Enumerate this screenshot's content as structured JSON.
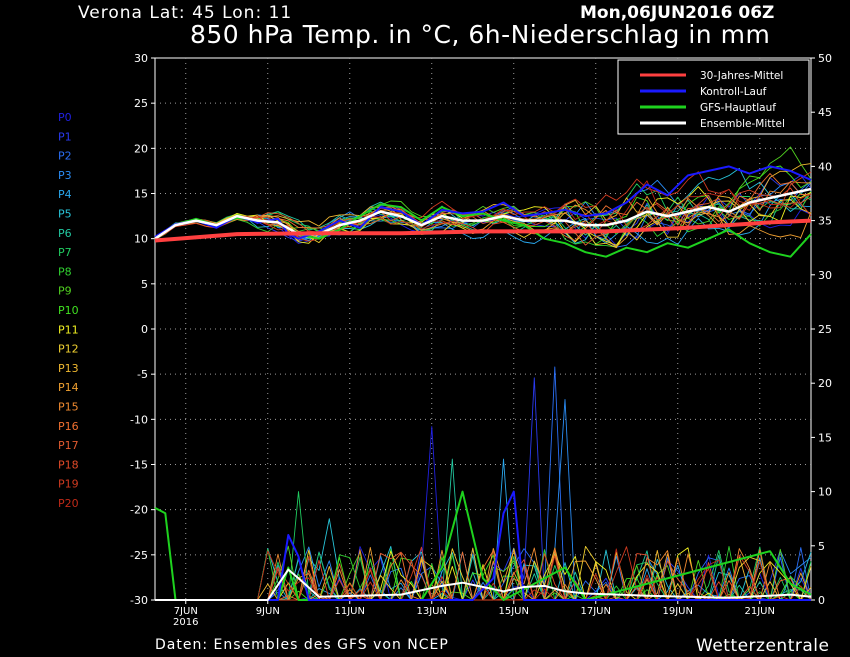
{
  "header": {
    "location": "Verona   Lat: 45 Lon: 11",
    "datetime": "Mon,06JUN2016 06Z",
    "title": "850 hPa Temp. in °C, 6h-Niederschlag in mm",
    "source": "Daten: Ensembles des GFS von NCEP",
    "brand": "Wetterzentrale"
  },
  "chart_data": {
    "type": "line",
    "title": "850 hPa Temp. in °C, 6h-Niederschlag in mm",
    "x_unit": "forecast hours from 06JUN2016 06Z (6h steps)",
    "x_range": [
      0,
      384
    ],
    "x_ticks": [
      {
        "hour": 18,
        "label": "7JUN",
        "sub": "2016"
      },
      {
        "hour": 66,
        "label": "9JUN"
      },
      {
        "hour": 114,
        "label": "11JUN"
      },
      {
        "hour": 162,
        "label": "13JUN"
      },
      {
        "hour": 210,
        "label": "15JUN"
      },
      {
        "hour": 258,
        "label": "17JUN"
      },
      {
        "hour": 306,
        "label": "19JUN"
      },
      {
        "hour": 354,
        "label": "21JUN"
      }
    ],
    "y_left": {
      "label": "850 hPa Temp. (°C)",
      "range": [
        -30,
        30
      ],
      "ticks": [
        30,
        25,
        20,
        15,
        10,
        5,
        0,
        -5,
        -10,
        -15,
        -20,
        -25,
        -30
      ]
    },
    "y_right": {
      "label": "6h-Niederschlag (mm)",
      "range": [
        0,
        50
      ],
      "ticks": [
        50,
        45,
        40,
        35,
        30,
        25,
        20,
        15,
        10,
        5,
        0
      ]
    },
    "grid": true,
    "legend": {
      "placement": "top-right",
      "entries": [
        {
          "name": "30-Jahres-Mittel",
          "color": "#ff4040"
        },
        {
          "name": "Kontroll-Lauf",
          "color": "#1a1aff"
        },
        {
          "name": "GFS-Hauptlauf",
          "color": "#1ed21e"
        },
        {
          "name": "Ensemble-Mittel",
          "color": "#ffffff"
        }
      ]
    },
    "members": [
      {
        "name": "P0",
        "color": "#2020e0"
      },
      {
        "name": "P1",
        "color": "#2a3af0"
      },
      {
        "name": "P2",
        "color": "#2a6ef5"
      },
      {
        "name": "P3",
        "color": "#2a8cf5"
      },
      {
        "name": "P4",
        "color": "#2aa8ee"
      },
      {
        "name": "P5",
        "color": "#28c4d8"
      },
      {
        "name": "P6",
        "color": "#22c8a0"
      },
      {
        "name": "P7",
        "color": "#20cc60"
      },
      {
        "name": "P8",
        "color": "#30d030"
      },
      {
        "name": "P9",
        "color": "#50d020"
      },
      {
        "name": "P10",
        "color": "#40e020"
      },
      {
        "name": "P11",
        "color": "#f0f020"
      },
      {
        "name": "P12",
        "color": "#f0d030"
      },
      {
        "name": "P13",
        "color": "#f0b830"
      },
      {
        "name": "P14",
        "color": "#f0a030"
      },
      {
        "name": "P15",
        "color": "#f08a30"
      },
      {
        "name": "P16",
        "color": "#f07030"
      },
      {
        "name": "P17",
        "color": "#e05a30"
      },
      {
        "name": "P18",
        "color": "#e04a28"
      },
      {
        "name": "P19",
        "color": "#d03a20"
      },
      {
        "name": "P20",
        "color": "#c02a18"
      }
    ],
    "series": {
      "temperature": {
        "climate_mean": [
          [
            0,
            9.8
          ],
          [
            48,
            10.5
          ],
          [
            96,
            10.6
          ],
          [
            144,
            10.6
          ],
          [
            192,
            10.8
          ],
          [
            240,
            10.8
          ],
          [
            264,
            10.8
          ],
          [
            312,
            11.2
          ],
          [
            360,
            11.8
          ],
          [
            384,
            12.0
          ]
        ],
        "control_run": [
          [
            0,
            10.2
          ],
          [
            12,
            11.6
          ],
          [
            24,
            12.0
          ],
          [
            36,
            11.2
          ],
          [
            48,
            12.5
          ],
          [
            60,
            11.8
          ],
          [
            72,
            12.2
          ],
          [
            78,
            10.5
          ],
          [
            84,
            10.0
          ],
          [
            96,
            10.8
          ],
          [
            108,
            12.0
          ],
          [
            120,
            11.2
          ],
          [
            132,
            13.5
          ],
          [
            144,
            13.0
          ],
          [
            156,
            11.5
          ],
          [
            168,
            13.2
          ],
          [
            180,
            12.8
          ],
          [
            192,
            13.0
          ],
          [
            204,
            14.0
          ],
          [
            216,
            12.5
          ],
          [
            228,
            12.8
          ],
          [
            240,
            13.2
          ],
          [
            252,
            12.5
          ],
          [
            264,
            12.8
          ],
          [
            276,
            14.0
          ],
          [
            288,
            16.0
          ],
          [
            300,
            14.8
          ],
          [
            312,
            17.0
          ],
          [
            324,
            17.5
          ],
          [
            336,
            18.0
          ],
          [
            348,
            17.2
          ],
          [
            360,
            18.0
          ],
          [
            372,
            17.5
          ],
          [
            384,
            16.5
          ]
        ],
        "gfs_main_run": [
          [
            0,
            10.0
          ],
          [
            12,
            11.5
          ],
          [
            24,
            12.2
          ],
          [
            36,
            11.5
          ],
          [
            48,
            12.3
          ],
          [
            60,
            12.0
          ],
          [
            72,
            11.8
          ],
          [
            84,
            10.5
          ],
          [
            96,
            10.0
          ],
          [
            108,
            11.0
          ],
          [
            120,
            12.5
          ],
          [
            132,
            13.8
          ],
          [
            144,
            13.5
          ],
          [
            156,
            12.0
          ],
          [
            168,
            13.5
          ],
          [
            180,
            12.5
          ],
          [
            192,
            12.8
          ],
          [
            204,
            12.0
          ],
          [
            216,
            11.5
          ],
          [
            228,
            10.0
          ],
          [
            240,
            9.5
          ],
          [
            252,
            8.5
          ],
          [
            264,
            8.0
          ],
          [
            276,
            9.0
          ],
          [
            288,
            8.5
          ],
          [
            300,
            9.5
          ],
          [
            312,
            9.0
          ],
          [
            324,
            10.0
          ],
          [
            336,
            11.0
          ],
          [
            348,
            9.5
          ],
          [
            360,
            8.5
          ],
          [
            372,
            8.0
          ],
          [
            384,
            10.5
          ]
        ],
        "ensemble_mean": [
          [
            0,
            10.0
          ],
          [
            12,
            11.5
          ],
          [
            24,
            12.0
          ],
          [
            36,
            11.5
          ],
          [
            48,
            12.5
          ],
          [
            60,
            12.0
          ],
          [
            72,
            11.8
          ],
          [
            84,
            10.5
          ],
          [
            96,
            10.5
          ],
          [
            108,
            11.5
          ],
          [
            120,
            12.0
          ],
          [
            132,
            13.0
          ],
          [
            144,
            12.5
          ],
          [
            156,
            11.5
          ],
          [
            168,
            12.5
          ],
          [
            180,
            12.0
          ],
          [
            192,
            12.0
          ],
          [
            204,
            12.5
          ],
          [
            216,
            12.0
          ],
          [
            228,
            12.0
          ],
          [
            240,
            12.0
          ],
          [
            252,
            11.5
          ],
          [
            264,
            11.5
          ],
          [
            276,
            12.0
          ],
          [
            288,
            13.0
          ],
          [
            300,
            12.5
          ],
          [
            312,
            13.0
          ],
          [
            324,
            13.5
          ],
          [
            336,
            13.0
          ],
          [
            348,
            14.0
          ],
          [
            360,
            14.5
          ],
          [
            372,
            15.0
          ],
          [
            384,
            15.5
          ]
        ]
      },
      "precipitation_mm": {
        "control_run": [
          [
            0,
            0
          ],
          [
            72,
            0
          ],
          [
            78,
            6
          ],
          [
            84,
            4
          ],
          [
            90,
            0
          ],
          [
            186,
            0
          ],
          [
            198,
            2
          ],
          [
            204,
            8
          ],
          [
            210,
            10
          ],
          [
            216,
            0
          ],
          [
            384,
            0
          ]
        ],
        "gfs_main_run": [
          [
            0,
            8.5
          ],
          [
            6,
            8
          ],
          [
            12,
            0
          ],
          [
            72,
            0
          ],
          [
            78,
            3
          ],
          [
            84,
            0
          ],
          [
            156,
            0
          ],
          [
            168,
            3
          ],
          [
            180,
            10
          ],
          [
            192,
            2
          ],
          [
            204,
            0
          ],
          [
            240,
            3
          ],
          [
            252,
            0
          ],
          [
            360,
            4.5
          ],
          [
            372,
            1.5
          ],
          [
            384,
            0.5
          ]
        ],
        "ensemble_mean": [
          [
            0,
            0
          ],
          [
            66,
            0
          ],
          [
            78,
            2.8
          ],
          [
            84,
            2.0
          ],
          [
            96,
            0.3
          ],
          [
            144,
            0.5
          ],
          [
            168,
            1.3
          ],
          [
            180,
            1.6
          ],
          [
            192,
            1.2
          ],
          [
            204,
            0.8
          ],
          [
            216,
            1.2
          ],
          [
            228,
            1.3
          ],
          [
            240,
            0.8
          ],
          [
            252,
            0.6
          ],
          [
            288,
            0.4
          ],
          [
            336,
            0.2
          ],
          [
            372,
            0.5
          ],
          [
            384,
            0.3
          ]
        ],
        "member_peaks": [
          {
            "hour": 162,
            "value": 16.0
          },
          {
            "hour": 222,
            "value": 20.5
          },
          {
            "hour": 234,
            "value": 21.5
          },
          {
            "hour": 240,
            "value": 18.5
          },
          {
            "hour": 204,
            "value": 13.0
          },
          {
            "hour": 102,
            "value": 7.5
          },
          {
            "hour": 174,
            "value": 13.0
          },
          {
            "hour": 84,
            "value": 10.0
          }
        ]
      }
    }
  }
}
